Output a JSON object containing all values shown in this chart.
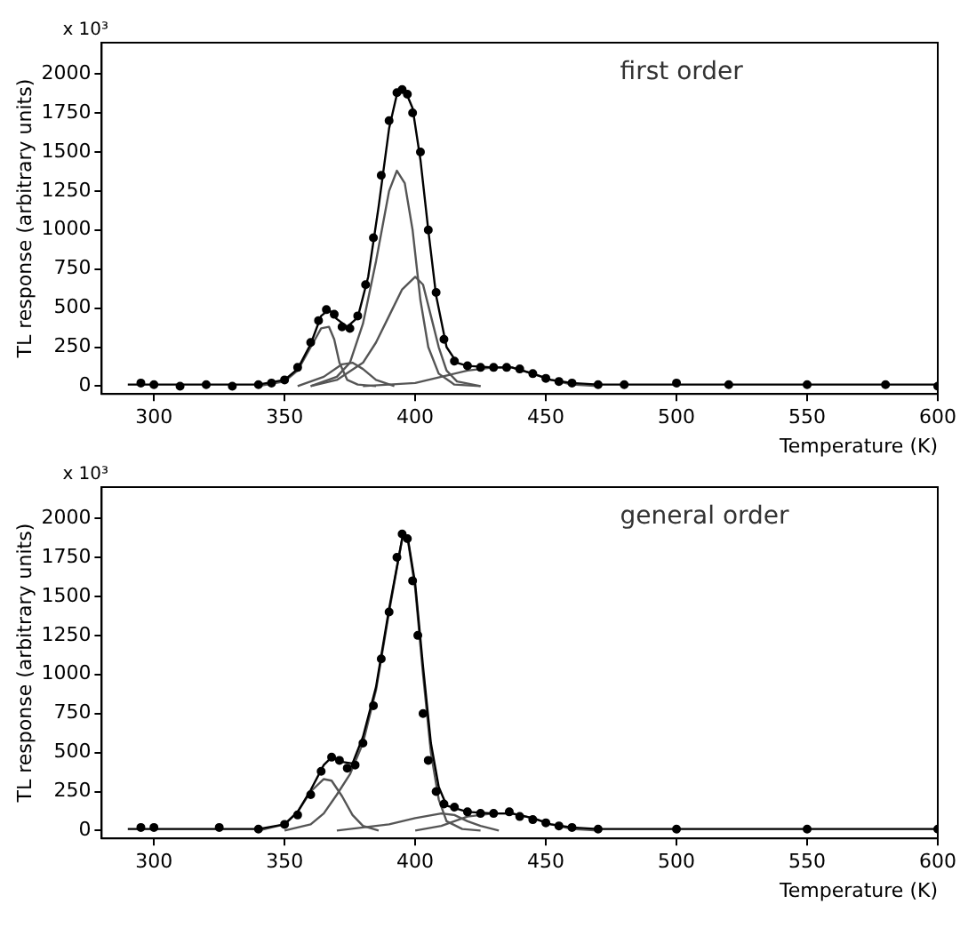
{
  "chart_data": [
    {
      "type": "line",
      "xlabel": "Temperature (K)",
      "ylabel": "TL response (arbitrary units)",
      "annotations": [
        "x 10³",
        "first order"
      ],
      "xlim": [
        280,
        600
      ],
      "xticks": [
        300,
        350,
        400,
        450,
        500,
        550,
        600
      ],
      "ylim": [
        -50,
        2200
      ],
      "yticks": [
        0,
        250,
        500,
        750,
        1000,
        1250,
        1500,
        1750,
        2000
      ],
      "grid": false,
      "legend": false,
      "series": [
        {
          "type": "scatter",
          "marker": "circle",
          "color": "#000000",
          "x": [
            295,
            300,
            310,
            320,
            330,
            340,
            345,
            350,
            355,
            360,
            363,
            366,
            369,
            372,
            375,
            378,
            381,
            384,
            387,
            390,
            393,
            395,
            397,
            399,
            402,
            405,
            408,
            411,
            415,
            420,
            425,
            430,
            435,
            440,
            445,
            450,
            455,
            460,
            470,
            480,
            500,
            520,
            550,
            580,
            600
          ],
          "values": [
            20,
            10,
            0,
            10,
            0,
            10,
            20,
            40,
            120,
            280,
            420,
            490,
            460,
            380,
            370,
            450,
            650,
            950,
            1350,
            1700,
            1880,
            1900,
            1870,
            1750,
            1500,
            1000,
            600,
            300,
            160,
            130,
            120,
            120,
            120,
            110,
            80,
            50,
            30,
            20,
            10,
            10,
            20,
            10,
            10,
            10,
            0
          ]
        },
        {
          "type": "line",
          "color": "#000000",
          "x": [
            290,
            340,
            350,
            355,
            360,
            364,
            367,
            370,
            374,
            378,
            382,
            386,
            390,
            393,
            396,
            399,
            402,
            405,
            408,
            412,
            416,
            420,
            430,
            437,
            445,
            452,
            460,
            470,
            600
          ],
          "values": [
            10,
            10,
            40,
            110,
            270,
            450,
            490,
            430,
            380,
            440,
            700,
            1150,
            1650,
            1870,
            1900,
            1780,
            1450,
            1000,
            580,
            250,
            150,
            130,
            120,
            120,
            80,
            40,
            20,
            10,
            10
          ]
        },
        {
          "type": "line",
          "color": "#555555",
          "x": [
            340,
            350,
            355,
            360,
            364,
            367,
            369,
            371,
            374,
            378,
            385
          ],
          "values": [
            0,
            30,
            100,
            250,
            370,
            380,
            300,
            150,
            40,
            10,
            0
          ]
        },
        {
          "type": "line",
          "color": "#555555",
          "x": [
            355,
            365,
            372,
            376,
            380,
            385,
            392
          ],
          "values": [
            0,
            60,
            140,
            150,
            110,
            40,
            0
          ]
        },
        {
          "type": "line",
          "color": "#555555",
          "x": [
            360,
            370,
            375,
            380,
            385,
            390,
            393,
            396,
            399,
            402,
            405,
            409,
            415,
            425
          ],
          "values": [
            0,
            60,
            150,
            400,
            800,
            1250,
            1380,
            1300,
            1000,
            550,
            250,
            80,
            10,
            0
          ]
        },
        {
          "type": "line",
          "color": "#555555",
          "x": [
            360,
            370,
            380,
            385,
            390,
            395,
            400,
            403,
            406,
            409,
            412,
            416,
            425
          ],
          "values": [
            0,
            40,
            150,
            280,
            450,
            620,
            700,
            650,
            450,
            250,
            100,
            30,
            0
          ]
        },
        {
          "type": "line",
          "color": "#555555",
          "x": [
            380,
            400,
            410,
            420,
            430,
            437,
            445,
            452,
            460,
            470
          ],
          "values": [
            0,
            20,
            60,
            100,
            120,
            120,
            80,
            40,
            10,
            0
          ]
        }
      ]
    },
    {
      "type": "line",
      "xlabel": "Temperature (K)",
      "ylabel": "TL response (arbitrary units)",
      "annotations": [
        "x 10³",
        "general order"
      ],
      "xlim": [
        280,
        600
      ],
      "xticks": [
        300,
        350,
        400,
        450,
        500,
        550,
        600
      ],
      "ylim": [
        -50,
        2200
      ],
      "yticks": [
        0,
        250,
        500,
        750,
        1000,
        1250,
        1500,
        1750,
        2000
      ],
      "grid": false,
      "legend": false,
      "series": [
        {
          "type": "scatter",
          "marker": "circle",
          "color": "#000000",
          "x": [
            295,
            300,
            325,
            340,
            350,
            355,
            360,
            364,
            368,
            371,
            374,
            377,
            380,
            384,
            387,
            390,
            393,
            395,
            397,
            399,
            401,
            403,
            405,
            408,
            411,
            415,
            420,
            425,
            430,
            436,
            440,
            445,
            450,
            455,
            460,
            470,
            500,
            550,
            600
          ],
          "values": [
            20,
            20,
            20,
            10,
            40,
            100,
            230,
            380,
            470,
            450,
            400,
            420,
            560,
            800,
            1100,
            1400,
            1750,
            1900,
            1870,
            1600,
            1250,
            750,
            450,
            250,
            170,
            150,
            120,
            110,
            110,
            120,
            90,
            70,
            50,
            30,
            20,
            10,
            10,
            10,
            10
          ]
        },
        {
          "type": "line",
          "color": "#000000",
          "x": [
            290,
            340,
            350,
            355,
            360,
            365,
            368,
            372,
            376,
            380,
            385,
            390,
            395,
            397,
            400,
            403,
            406,
            409,
            412,
            416,
            420,
            430,
            437,
            445,
            452,
            460,
            470,
            600
          ],
          "values": [
            10,
            10,
            40,
            120,
            260,
            420,
            470,
            440,
            430,
            600,
            920,
            1420,
            1870,
            1890,
            1580,
            1050,
            560,
            280,
            160,
            140,
            120,
            110,
            110,
            80,
            40,
            20,
            10,
            10
          ]
        },
        {
          "type": "line",
          "color": "#555555",
          "x": [
            340,
            350,
            355,
            360,
            365,
            368,
            372,
            376,
            380,
            386
          ],
          "values": [
            0,
            40,
            120,
            250,
            330,
            320,
            220,
            100,
            30,
            0
          ]
        },
        {
          "type": "line",
          "color": "#555555",
          "x": [
            350,
            360,
            365,
            370,
            375,
            380,
            385,
            390,
            395,
            397,
            400,
            403,
            406,
            409,
            412,
            418,
            425
          ],
          "values": [
            0,
            40,
            110,
            230,
            360,
            560,
            900,
            1400,
            1870,
            1880,
            1550,
            1000,
            500,
            200,
            60,
            10,
            0
          ]
        },
        {
          "type": "line",
          "color": "#555555",
          "x": [
            370,
            390,
            400,
            410,
            415,
            420,
            425,
            432
          ],
          "values": [
            0,
            40,
            80,
            110,
            100,
            60,
            30,
            0
          ]
        },
        {
          "type": "line",
          "color": "#555555",
          "x": [
            400,
            410,
            420,
            430,
            437,
            445,
            452,
            460,
            470
          ],
          "values": [
            0,
            30,
            90,
            110,
            110,
            80,
            40,
            10,
            0
          ]
        }
      ]
    }
  ]
}
